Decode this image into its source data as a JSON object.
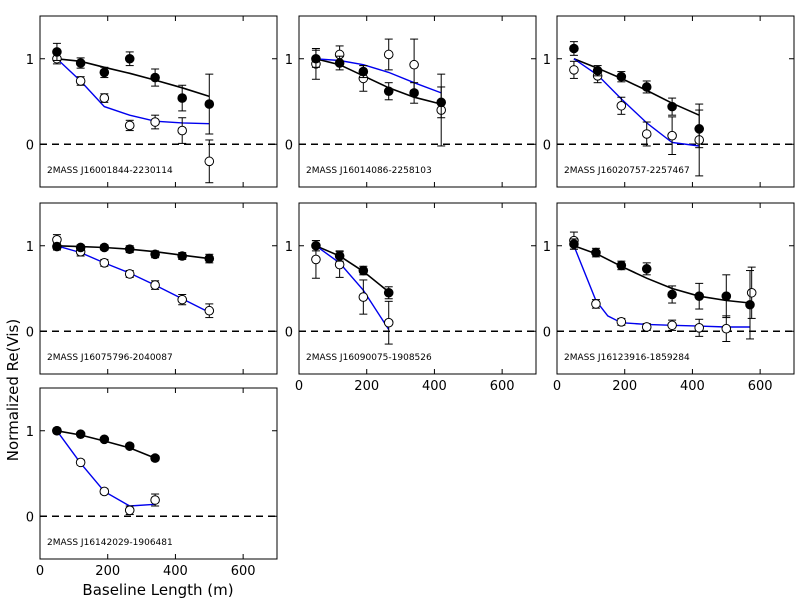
{
  "figure": {
    "ylabel": "Normalized Re(Vis)",
    "xlabel": "Baseline Length (m)"
  },
  "chart_data": [
    {
      "type": "scatter",
      "label": "2MASS J16001844-2230114",
      "xlim": [
        0,
        700
      ],
      "ylim": [
        -0.5,
        1.5
      ],
      "xticks": [],
      "yticks": [
        0,
        1
      ],
      "filled": {
        "x": [
          50,
          120,
          190,
          265,
          340,
          420,
          500
        ],
        "y": [
          1.08,
          0.95,
          0.84,
          1.0,
          0.78,
          0.54,
          0.47
        ],
        "err": [
          0.1,
          0.06,
          0.06,
          0.08,
          0.1,
          0.15,
          0.35
        ]
      },
      "open": {
        "x": [
          50,
          120,
          190,
          265,
          340,
          420,
          500
        ],
        "y": [
          1.0,
          0.74,
          0.54,
          0.22,
          0.26,
          0.16,
          -0.2
        ],
        "err": [
          0.06,
          0.05,
          0.05,
          0.06,
          0.08,
          0.15,
          0.25
        ]
      },
      "model_black": {
        "x": [
          50,
          120,
          190,
          265,
          340,
          420,
          500
        ],
        "y": [
          1.0,
          0.97,
          0.9,
          0.83,
          0.75,
          0.66,
          0.56
        ]
      },
      "model_blue": {
        "x": [
          50,
          120,
          190,
          265,
          340,
          420,
          500
        ],
        "y": [
          1.0,
          0.74,
          0.44,
          0.34,
          0.27,
          0.25,
          0.24
        ]
      }
    },
    {
      "type": "scatter",
      "label": "2MASS J16014086-2258103",
      "xlim": [
        0,
        700
      ],
      "ylim": [
        -0.5,
        1.5
      ],
      "xticks": [],
      "yticks": [
        0,
        1
      ],
      "filled": {
        "x": [
          50,
          120,
          190,
          265,
          340,
          420
        ],
        "y": [
          1.0,
          0.95,
          0.85,
          0.62,
          0.6,
          0.49
        ],
        "err": [
          0.1,
          0.08,
          0.07,
          0.1,
          0.12,
          0.18
        ]
      },
      "open": {
        "x": [
          50,
          120,
          190,
          265,
          340,
          420
        ],
        "y": [
          0.94,
          1.05,
          0.77,
          1.05,
          0.93,
          0.4
        ],
        "err": [
          0.18,
          0.1,
          0.15,
          0.18,
          0.3,
          0.42
        ]
      },
      "model_black": {
        "x": [
          50,
          120,
          190,
          265,
          340,
          420
        ],
        "y": [
          1.0,
          0.93,
          0.8,
          0.66,
          0.55,
          0.47
        ]
      },
      "model_blue": {
        "x": [
          50,
          120,
          190,
          265,
          340,
          420
        ],
        "y": [
          1.0,
          0.98,
          0.93,
          0.84,
          0.72,
          0.6
        ]
      }
    },
    {
      "type": "scatter",
      "label": "2MASS J16020757-2257467",
      "xlim": [
        0,
        700
      ],
      "ylim": [
        -0.5,
        1.5
      ],
      "xticks": [],
      "yticks": [
        0,
        1
      ],
      "filled": {
        "x": [
          50,
          120,
          190,
          265,
          340,
          420
        ],
        "y": [
          1.12,
          0.86,
          0.79,
          0.67,
          0.44,
          0.18
        ],
        "err": [
          0.08,
          0.06,
          0.06,
          0.07,
          0.1,
          0.22
        ]
      },
      "open": {
        "x": [
          50,
          120,
          190,
          265,
          340,
          420
        ],
        "y": [
          0.87,
          0.8,
          0.45,
          0.12,
          0.1,
          0.05
        ],
        "err": [
          0.1,
          0.08,
          0.1,
          0.14,
          0.22,
          0.42
        ]
      },
      "model_black": {
        "x": [
          50,
          120,
          190,
          265,
          340,
          420
        ],
        "y": [
          1.0,
          0.89,
          0.77,
          0.63,
          0.48,
          0.34
        ]
      },
      "model_blue": {
        "x": [
          50,
          120,
          190,
          265,
          340,
          420
        ],
        "y": [
          1.0,
          0.81,
          0.53,
          0.25,
          0.02,
          -0.02
        ]
      }
    },
    {
      "type": "scatter",
      "label": "2MASS J16075796-2040087",
      "xlim": [
        0,
        700
      ],
      "ylim": [
        -0.5,
        1.5
      ],
      "xticks": [],
      "yticks": [
        0,
        1
      ],
      "filled": {
        "x": [
          50,
          120,
          190,
          265,
          340,
          420,
          500
        ],
        "y": [
          0.99,
          0.98,
          0.98,
          0.96,
          0.9,
          0.88,
          0.85
        ],
        "err": [
          0.04,
          0.03,
          0.03,
          0.04,
          0.04,
          0.04,
          0.05
        ]
      },
      "open": {
        "x": [
          50,
          120,
          190,
          265,
          340,
          420,
          500
        ],
        "y": [
          1.07,
          0.93,
          0.8,
          0.67,
          0.54,
          0.37,
          0.24
        ],
        "err": [
          0.06,
          0.05,
          0.04,
          0.04,
          0.05,
          0.06,
          0.08
        ]
      },
      "model_black": {
        "x": [
          50,
          120,
          190,
          265,
          340,
          420,
          500
        ],
        "y": [
          1.0,
          0.99,
          0.98,
          0.96,
          0.93,
          0.89,
          0.85
        ]
      },
      "model_blue": {
        "x": [
          50,
          120,
          190,
          265,
          340,
          420,
          500
        ],
        "y": [
          1.0,
          0.92,
          0.8,
          0.68,
          0.54,
          0.38,
          0.22
        ]
      }
    },
    {
      "type": "scatter",
      "label": "2MASS J16090075-1908526",
      "xlim": [
        0,
        700
      ],
      "ylim": [
        -0.5,
        1.5
      ],
      "xticks": [
        0,
        200,
        400,
        600
      ],
      "yticks": [
        0,
        1
      ],
      "filled": {
        "x": [
          50,
          120,
          190,
          265
        ],
        "y": [
          1.0,
          0.88,
          0.71,
          0.45
        ],
        "err": [
          0.06,
          0.06,
          0.05,
          0.07
        ]
      },
      "open": {
        "x": [
          50,
          120,
          190,
          265
        ],
        "y": [
          0.84,
          0.78,
          0.4,
          0.1
        ],
        "err": [
          0.22,
          0.15,
          0.2,
          0.25
        ]
      },
      "model_black": {
        "x": [
          50,
          120,
          190,
          265
        ],
        "y": [
          1.0,
          0.88,
          0.7,
          0.46
        ]
      },
      "model_blue": {
        "x": [
          50,
          120,
          190,
          265
        ],
        "y": [
          1.0,
          0.8,
          0.48,
          0.02
        ]
      }
    },
    {
      "type": "scatter",
      "label": "2MASS J16123916-1859284",
      "xlim": [
        0,
        700
      ],
      "ylim": [
        -0.5,
        1.5
      ],
      "xticks": [
        0,
        200,
        400,
        600
      ],
      "yticks": [
        0,
        1
      ],
      "filled": {
        "x": [
          50,
          115,
          190,
          265,
          340,
          420,
          500,
          570
        ],
        "y": [
          1.02,
          0.92,
          0.77,
          0.73,
          0.43,
          0.41,
          0.41,
          0.31
        ],
        "err": [
          0.06,
          0.05,
          0.05,
          0.07,
          0.1,
          0.15,
          0.25,
          0.4
        ]
      },
      "open": {
        "x": [
          50,
          115,
          190,
          265,
          340,
          420,
          500,
          575
        ],
        "y": [
          1.06,
          0.32,
          0.11,
          0.05,
          0.07,
          0.04,
          0.03,
          0.45
        ],
        "err": [
          0.1,
          0.05,
          0.04,
          0.04,
          0.06,
          0.1,
          0.15,
          0.3
        ]
      },
      "model_black": {
        "x": [
          50,
          120,
          190,
          265,
          340,
          420,
          500,
          570
        ],
        "y": [
          1.0,
          0.9,
          0.76,
          0.62,
          0.5,
          0.41,
          0.36,
          0.33
        ]
      },
      "model_blue": {
        "x": [
          50,
          115,
          150,
          190,
          265,
          340,
          420,
          500,
          570
        ],
        "y": [
          1.0,
          0.36,
          0.18,
          0.1,
          0.08,
          0.07,
          0.06,
          0.05,
          0.05
        ]
      }
    },
    {
      "type": "scatter",
      "label": "2MASS J16142029-1906481",
      "xlim": [
        0,
        700
      ],
      "ylim": [
        -0.5,
        1.5
      ],
      "xticks": [
        0,
        200,
        400,
        600
      ],
      "yticks": [
        0,
        1
      ],
      "filled": {
        "x": [
          50,
          120,
          190,
          265,
          340
        ],
        "y": [
          1.0,
          0.96,
          0.9,
          0.82,
          0.68
        ],
        "err": [
          0.02,
          0.02,
          0.02,
          0.03,
          0.03
        ]
      },
      "open": {
        "x": [
          50,
          120,
          190,
          265,
          340
        ],
        "y": [
          1.0,
          0.63,
          0.29,
          0.07,
          0.19
        ],
        "err": [
          0.03,
          0.03,
          0.03,
          0.05,
          0.07
        ]
      },
      "model_black": {
        "x": [
          50,
          120,
          190,
          265,
          340
        ],
        "y": [
          1.0,
          0.95,
          0.88,
          0.8,
          0.68
        ]
      },
      "model_blue": {
        "x": [
          50,
          120,
          190,
          265,
          340
        ],
        "y": [
          1.0,
          0.62,
          0.29,
          0.12,
          0.14
        ]
      }
    }
  ]
}
